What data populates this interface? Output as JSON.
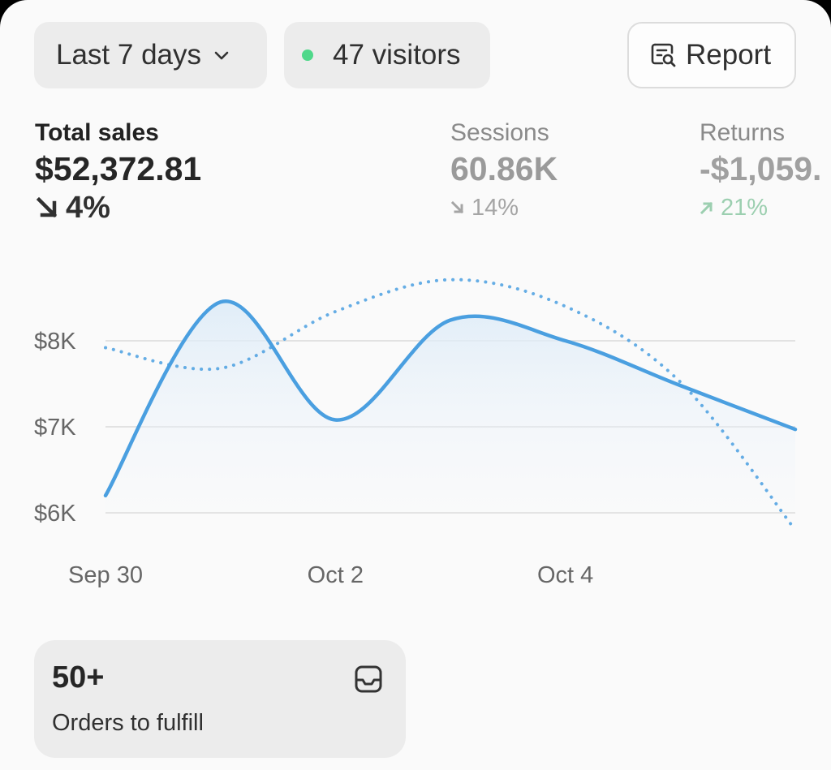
{
  "toolbar": {
    "range_label": "Last 7 days",
    "visitors_label": "47 visitors",
    "report_label": "Report",
    "live_dot_color": "#4fd88a"
  },
  "metrics": {
    "sales": {
      "label": "Total sales",
      "value": "$52,372.81",
      "change": "4%",
      "direction": "down"
    },
    "sessions": {
      "label": "Sessions",
      "value": "60.86K",
      "change": "14%",
      "direction": "down"
    },
    "returns": {
      "label": "Returns",
      "value": "-$1,059.",
      "change": "21%",
      "direction": "up"
    }
  },
  "chart_data": {
    "type": "line",
    "y_ticks": [
      "$8K",
      "$7K",
      "$6K"
    ],
    "x_tick_labels": [
      "Sep 30",
      "Oct 2",
      "Oct 4"
    ],
    "x": [
      "Sep 30",
      "Oct 1",
      "Oct 2",
      "Oct 3",
      "Oct 4",
      "Oct 5",
      "Oct 6"
    ],
    "ylim": [
      6000,
      8000
    ],
    "grid": true,
    "series": [
      {
        "style": "solid",
        "color": "#4a9fe0",
        "values": [
          6200,
          8450,
          7080,
          8240,
          8000,
          7480,
          6970
        ]
      },
      {
        "style": "dotted",
        "color": "#4a9fe0",
        "values": [
          7920,
          7680,
          8340,
          8710,
          8400,
          7520,
          5800
        ]
      }
    ]
  },
  "orders": {
    "count": "50+",
    "label": "Orders to fulfill"
  }
}
